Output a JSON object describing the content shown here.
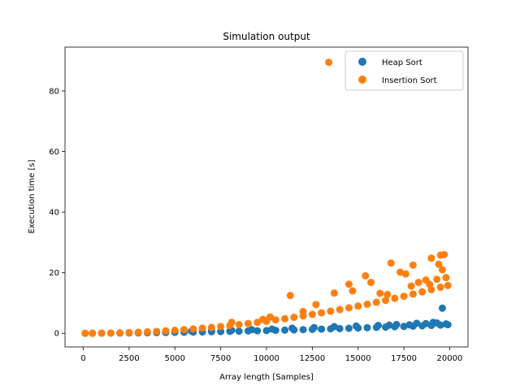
{
  "chart_data": {
    "type": "scatter",
    "title": "Simulation output",
    "xlabel": "Array length [Samples]",
    "ylabel": "Execution time [s]",
    "xlim": [
      -1000,
      21000
    ],
    "ylim": [
      -4.5,
      94.5
    ],
    "xticks": [
      0,
      2500,
      5000,
      7500,
      10000,
      12500,
      15000,
      17500,
      20000
    ],
    "yticks": [
      0,
      20,
      40,
      60,
      80
    ],
    "grid": false,
    "legend_position": "top-right",
    "series": [
      {
        "name": "Heap Sort",
        "color": "#1f77b4",
        "points": [
          [
            100,
            0.0
          ],
          [
            500,
            0.02
          ],
          [
            1000,
            0.04
          ],
          [
            1500,
            0.06
          ],
          [
            2000,
            0.09
          ],
          [
            2500,
            0.12
          ],
          [
            3000,
            0.15
          ],
          [
            3500,
            0.19
          ],
          [
            4000,
            0.23
          ],
          [
            4500,
            0.27
          ],
          [
            5000,
            0.32
          ],
          [
            5500,
            0.36
          ],
          [
            6000,
            0.41
          ],
          [
            6500,
            0.46
          ],
          [
            7000,
            0.52
          ],
          [
            7500,
            0.58
          ],
          [
            8000,
            0.64
          ],
          [
            8500,
            0.7
          ],
          [
            9000,
            0.77
          ],
          [
            9500,
            0.84
          ],
          [
            10000,
            0.9
          ],
          [
            10500,
            0.98
          ],
          [
            11000,
            1.05
          ],
          [
            11500,
            1.13
          ],
          [
            12000,
            1.2
          ],
          [
            12500,
            1.3
          ],
          [
            13000,
            1.38
          ],
          [
            13500,
            1.47
          ],
          [
            14000,
            1.56
          ],
          [
            14500,
            1.66
          ],
          [
            15000,
            1.75
          ],
          [
            15500,
            1.85
          ],
          [
            16000,
            1.95
          ],
          [
            16500,
            2.05
          ],
          [
            17000,
            2.15
          ],
          [
            17500,
            2.26
          ],
          [
            18000,
            2.37
          ],
          [
            18500,
            2.48
          ],
          [
            19000,
            2.6
          ],
          [
            19500,
            2.72
          ],
          [
            19900,
            2.85
          ],
          [
            19600,
            8.3
          ],
          [
            19300,
            3.4
          ],
          [
            18200,
            3.3
          ],
          [
            17100,
            2.9
          ],
          [
            16100,
            2.6
          ],
          [
            14900,
            2.4
          ],
          [
            13700,
            2.2
          ],
          [
            12600,
            1.9
          ],
          [
            11400,
            1.7
          ],
          [
            10300,
            1.4
          ],
          [
            9200,
            1.2
          ],
          [
            8100,
            1.0
          ],
          [
            7000,
            0.9
          ],
          [
            5900,
            0.7
          ],
          [
            19800,
            3.1
          ],
          [
            19100,
            3.6
          ],
          [
            18700,
            3.2
          ],
          [
            17800,
            2.8
          ],
          [
            16700,
            2.7
          ]
        ]
      },
      {
        "name": "Insertion Sort",
        "color": "#ff7f0e",
        "points": [
          [
            100,
            0.0
          ],
          [
            500,
            0.01
          ],
          [
            1000,
            0.04
          ],
          [
            1500,
            0.09
          ],
          [
            2000,
            0.16
          ],
          [
            2500,
            0.25
          ],
          [
            3000,
            0.36
          ],
          [
            3500,
            0.49
          ],
          [
            4000,
            0.64
          ],
          [
            4500,
            0.81
          ],
          [
            5000,
            1.0
          ],
          [
            5500,
            1.21
          ],
          [
            6000,
            1.44
          ],
          [
            6500,
            1.69
          ],
          [
            7000,
            1.96
          ],
          [
            7500,
            2.25
          ],
          [
            8000,
            2.56
          ],
          [
            8500,
            2.89
          ],
          [
            9000,
            3.24
          ],
          [
            9500,
            3.61
          ],
          [
            10000,
            4.0
          ],
          [
            10500,
            4.41
          ],
          [
            11000,
            4.84
          ],
          [
            11500,
            5.29
          ],
          [
            12000,
            5.76
          ],
          [
            12500,
            6.25
          ],
          [
            13000,
            6.76
          ],
          [
            13500,
            7.29
          ],
          [
            14000,
            7.84
          ],
          [
            14500,
            8.41
          ],
          [
            15000,
            9.0
          ],
          [
            15500,
            9.61
          ],
          [
            16000,
            10.24
          ],
          [
            16500,
            10.89
          ],
          [
            17000,
            11.56
          ],
          [
            17500,
            12.25
          ],
          [
            18000,
            12.96
          ],
          [
            18500,
            13.69
          ],
          [
            19000,
            14.44
          ],
          [
            19500,
            15.21
          ],
          [
            19900,
            15.8
          ],
          [
            13400,
            89.5
          ],
          [
            19700,
            26.0
          ],
          [
            19500,
            25.8
          ],
          [
            19000,
            24.8
          ],
          [
            19400,
            22.8
          ],
          [
            19600,
            21.0
          ],
          [
            18000,
            22.5
          ],
          [
            16800,
            23.2
          ],
          [
            17300,
            20.2
          ],
          [
            17600,
            19.6
          ],
          [
            15400,
            19.0
          ],
          [
            15700,
            16.8
          ],
          [
            14500,
            16.2
          ],
          [
            14700,
            14.0
          ],
          [
            13700,
            13.3
          ],
          [
            11300,
            12.5
          ],
          [
            12700,
            9.5
          ],
          [
            19800,
            18.4
          ],
          [
            18700,
            17.6
          ],
          [
            18300,
            16.8
          ],
          [
            17900,
            15.6
          ],
          [
            16200,
            13.2
          ],
          [
            12000,
            7.2
          ],
          [
            10200,
            5.4
          ],
          [
            8100,
            3.6
          ],
          [
            9800,
            4.6
          ],
          [
            16600,
            12.8
          ],
          [
            19300,
            17.8
          ],
          [
            18900,
            16.2
          ]
        ]
      }
    ]
  }
}
